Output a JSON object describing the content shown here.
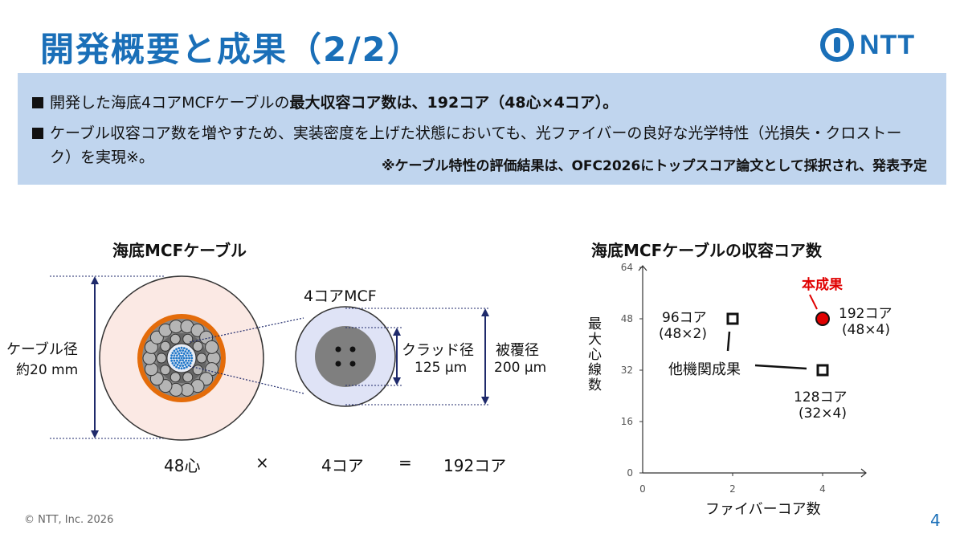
{
  "header": {
    "title": "開発概要と成果（2/2）",
    "logo_text": "NTT"
  },
  "summary": {
    "bullet1_prefix": "開発した海底4コアMCFケーブルの",
    "bullet1_bold": "最大収容コア数は、192コア（48心×4コア）。",
    "bullet2": "ケーブル収容コア数を増やすため、実装密度を上げた状態においても、光ファイバーの良好な光学特性（光損失・クロストーク）を実現※。",
    "note": "※ケーブル特性の評価結果は、OFC2026にトップスコア論文として採択され、発表予定"
  },
  "cable": {
    "heading": "海底MCFケーブル",
    "cable_label_line1": "ケーブル径",
    "cable_label_line2": "約20 mm",
    "mcf_label": "4コアMCF",
    "cladding_line1": "クラッド径",
    "cladding_line2": "125 μm",
    "coating_line1": "被覆径",
    "coating_line2": "200 μm",
    "fibers": "48心",
    "times": "×",
    "cores": "4コア",
    "equals": "=",
    "total": "192コア"
  },
  "chart": {
    "heading": "海底MCFケーブルの収容コア数",
    "xlabel": "ファイバーコア数",
    "ylabel": "最大心線数",
    "result_label": "本成果",
    "others_label": "他機関成果"
  },
  "chart_data": {
    "type": "scatter",
    "title": "海底MCFケーブルの収容コア数",
    "xlabel": "ファイバーコア数",
    "ylabel": "最大心線数",
    "xlim": [
      0,
      5
    ],
    "ylim": [
      0,
      64
    ],
    "xticks": [
      0,
      2,
      4
    ],
    "yticks": [
      0,
      16,
      32,
      48,
      64
    ],
    "points": [
      {
        "x": 2,
        "y": 48,
        "label_line1": "96コア",
        "label_line2": "(48×2)",
        "marker": "square"
      },
      {
        "x": 4,
        "y": 32,
        "label_line1": "128コア",
        "label_line2": "(32×4)",
        "marker": "square"
      },
      {
        "x": 4,
        "y": 48,
        "label_line1": "192コア",
        "label_line2": "(48×4)",
        "marker": "circle-red"
      }
    ],
    "colors": {
      "result": "#e00000",
      "accent": "#1a6fb8"
    }
  },
  "footer": {
    "copyright": "© NTT, Inc. 2026",
    "page": "4"
  }
}
